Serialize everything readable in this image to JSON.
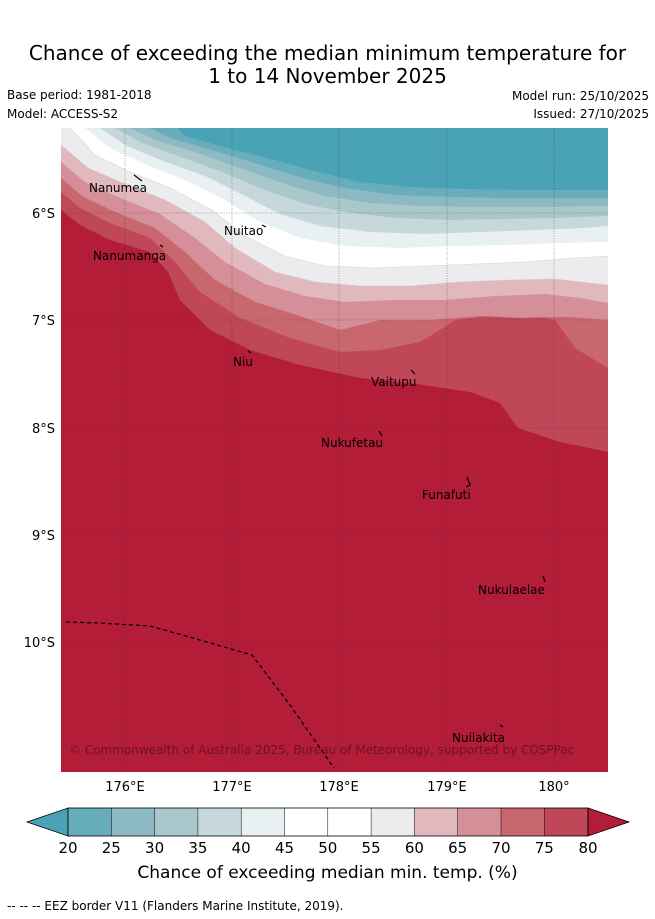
{
  "header": {
    "title_line1": "Chance of exceeding the median minimum temperature for",
    "title_line2": "1 to 14 November 2025",
    "base_period": "Base period: 1981-2018",
    "model": "Model: ACCESS-S2",
    "model_run": "Model run: 25/10/2025",
    "issued": "Issued: 27/10/2025"
  },
  "map": {
    "lat_labels": [
      "6°S",
      "7°S",
      "8°S",
      "9°S",
      "10°S"
    ],
    "lon_labels": [
      "176°E",
      "177°E",
      "178°E",
      "179°E",
      "180°"
    ],
    "places": [
      "Nanumea",
      "Nuitao",
      "Nanumanga",
      "Niu",
      "Vaitupu",
      "Nukufetau",
      "Funafuti",
      "Nukulaelae",
      "Nuilakita"
    ],
    "copyright": "© Commonwealth of Australia 2025, Bureau of Meteorology, supported by COSPPac"
  },
  "colorbar": {
    "ticks": [
      "20",
      "25",
      "30",
      "35",
      "40",
      "45",
      "50",
      "55",
      "60",
      "65",
      "70",
      "75",
      "80"
    ],
    "colors": {
      "below20": "#4aa3b4",
      "b20": "#67adbb",
      "b25": "#8db9c3",
      "b30": "#aac8cc",
      "b35": "#c7d8dc",
      "b40": "#e9f0f2",
      "b45": "#ffffff",
      "b50": "#ffffff",
      "b55": "#ecebed",
      "b60": "#e0b8bd",
      "b65": "#d58f98",
      "b70": "#c9676f",
      "b75": "#bf4757",
      "above80": "#b31d38"
    },
    "label": "Chance of exceeding median min. temp. (%)"
  },
  "footer": {
    "legend": "-- -- -- EEZ border V11 (Flanders Marine Institute, 2019)."
  }
}
